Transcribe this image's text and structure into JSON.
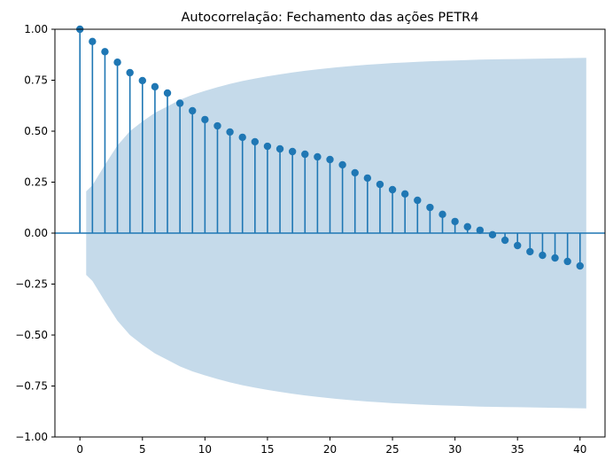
{
  "chart_data": {
    "type": "stem",
    "title": "Autocorrelação: Fechamento das ações PETR4",
    "xlabel": "",
    "ylabel": "",
    "xlim": [
      -2,
      42
    ],
    "ylim": [
      -1.0,
      1.0
    ],
    "xticks": [
      0,
      5,
      10,
      15,
      20,
      25,
      30,
      35,
      40
    ],
    "yticks": [
      -1.0,
      -0.75,
      -0.5,
      -0.25,
      0.0,
      0.25,
      0.5,
      0.75,
      1.0
    ],
    "xtick_labels": [
      "0",
      "5",
      "10",
      "15",
      "20",
      "25",
      "30",
      "35",
      "40"
    ],
    "ytick_labels": [
      "−1.00",
      "−0.75",
      "−0.50",
      "−0.25",
      "0.00",
      "0.25",
      "0.50",
      "0.75",
      "1.00"
    ],
    "grid": false,
    "lags": [
      0,
      1,
      2,
      3,
      4,
      5,
      6,
      7,
      8,
      9,
      10,
      11,
      12,
      13,
      14,
      15,
      16,
      17,
      18,
      19,
      20,
      21,
      22,
      23,
      24,
      25,
      26,
      27,
      28,
      29,
      30,
      31,
      32,
      33,
      34,
      35,
      36,
      37,
      38,
      39,
      40
    ],
    "values": [
      1.0,
      0.94,
      0.89,
      0.838,
      0.787,
      0.748,
      0.718,
      0.687,
      0.637,
      0.6,
      0.557,
      0.526,
      0.496,
      0.47,
      0.448,
      0.426,
      0.413,
      0.4,
      0.387,
      0.374,
      0.361,
      0.335,
      0.296,
      0.27,
      0.239,
      0.213,
      0.192,
      0.161,
      0.126,
      0.092,
      0.057,
      0.031,
      0.014,
      -0.008,
      -0.035,
      -0.061,
      -0.091,
      -0.109,
      -0.122,
      -0.139,
      -0.161
    ],
    "confidence_band": {
      "lags": [
        0.5,
        1,
        2,
        3,
        4,
        5,
        6,
        7,
        8,
        9,
        10,
        11,
        12,
        13,
        14,
        15,
        16,
        17,
        18,
        19,
        20,
        21,
        22,
        23,
        24,
        25,
        26,
        27,
        28,
        29,
        30,
        31,
        32,
        33,
        34,
        35,
        36,
        37,
        38,
        39,
        40.5
      ],
      "upper": [
        0.205,
        0.235,
        0.335,
        0.43,
        0.5,
        0.548,
        0.59,
        0.622,
        0.654,
        0.678,
        0.698,
        0.716,
        0.732,
        0.746,
        0.758,
        0.769,
        0.779,
        0.788,
        0.796,
        0.803,
        0.81,
        0.816,
        0.821,
        0.826,
        0.83,
        0.834,
        0.837,
        0.84,
        0.843,
        0.845,
        0.847,
        0.849,
        0.851,
        0.852,
        0.853,
        0.854,
        0.855,
        0.856,
        0.857,
        0.858,
        0.86
      ]
    },
    "colors": {
      "stem": "#1f77b4",
      "band": "#c5daea",
      "axis": "#000000"
    }
  }
}
